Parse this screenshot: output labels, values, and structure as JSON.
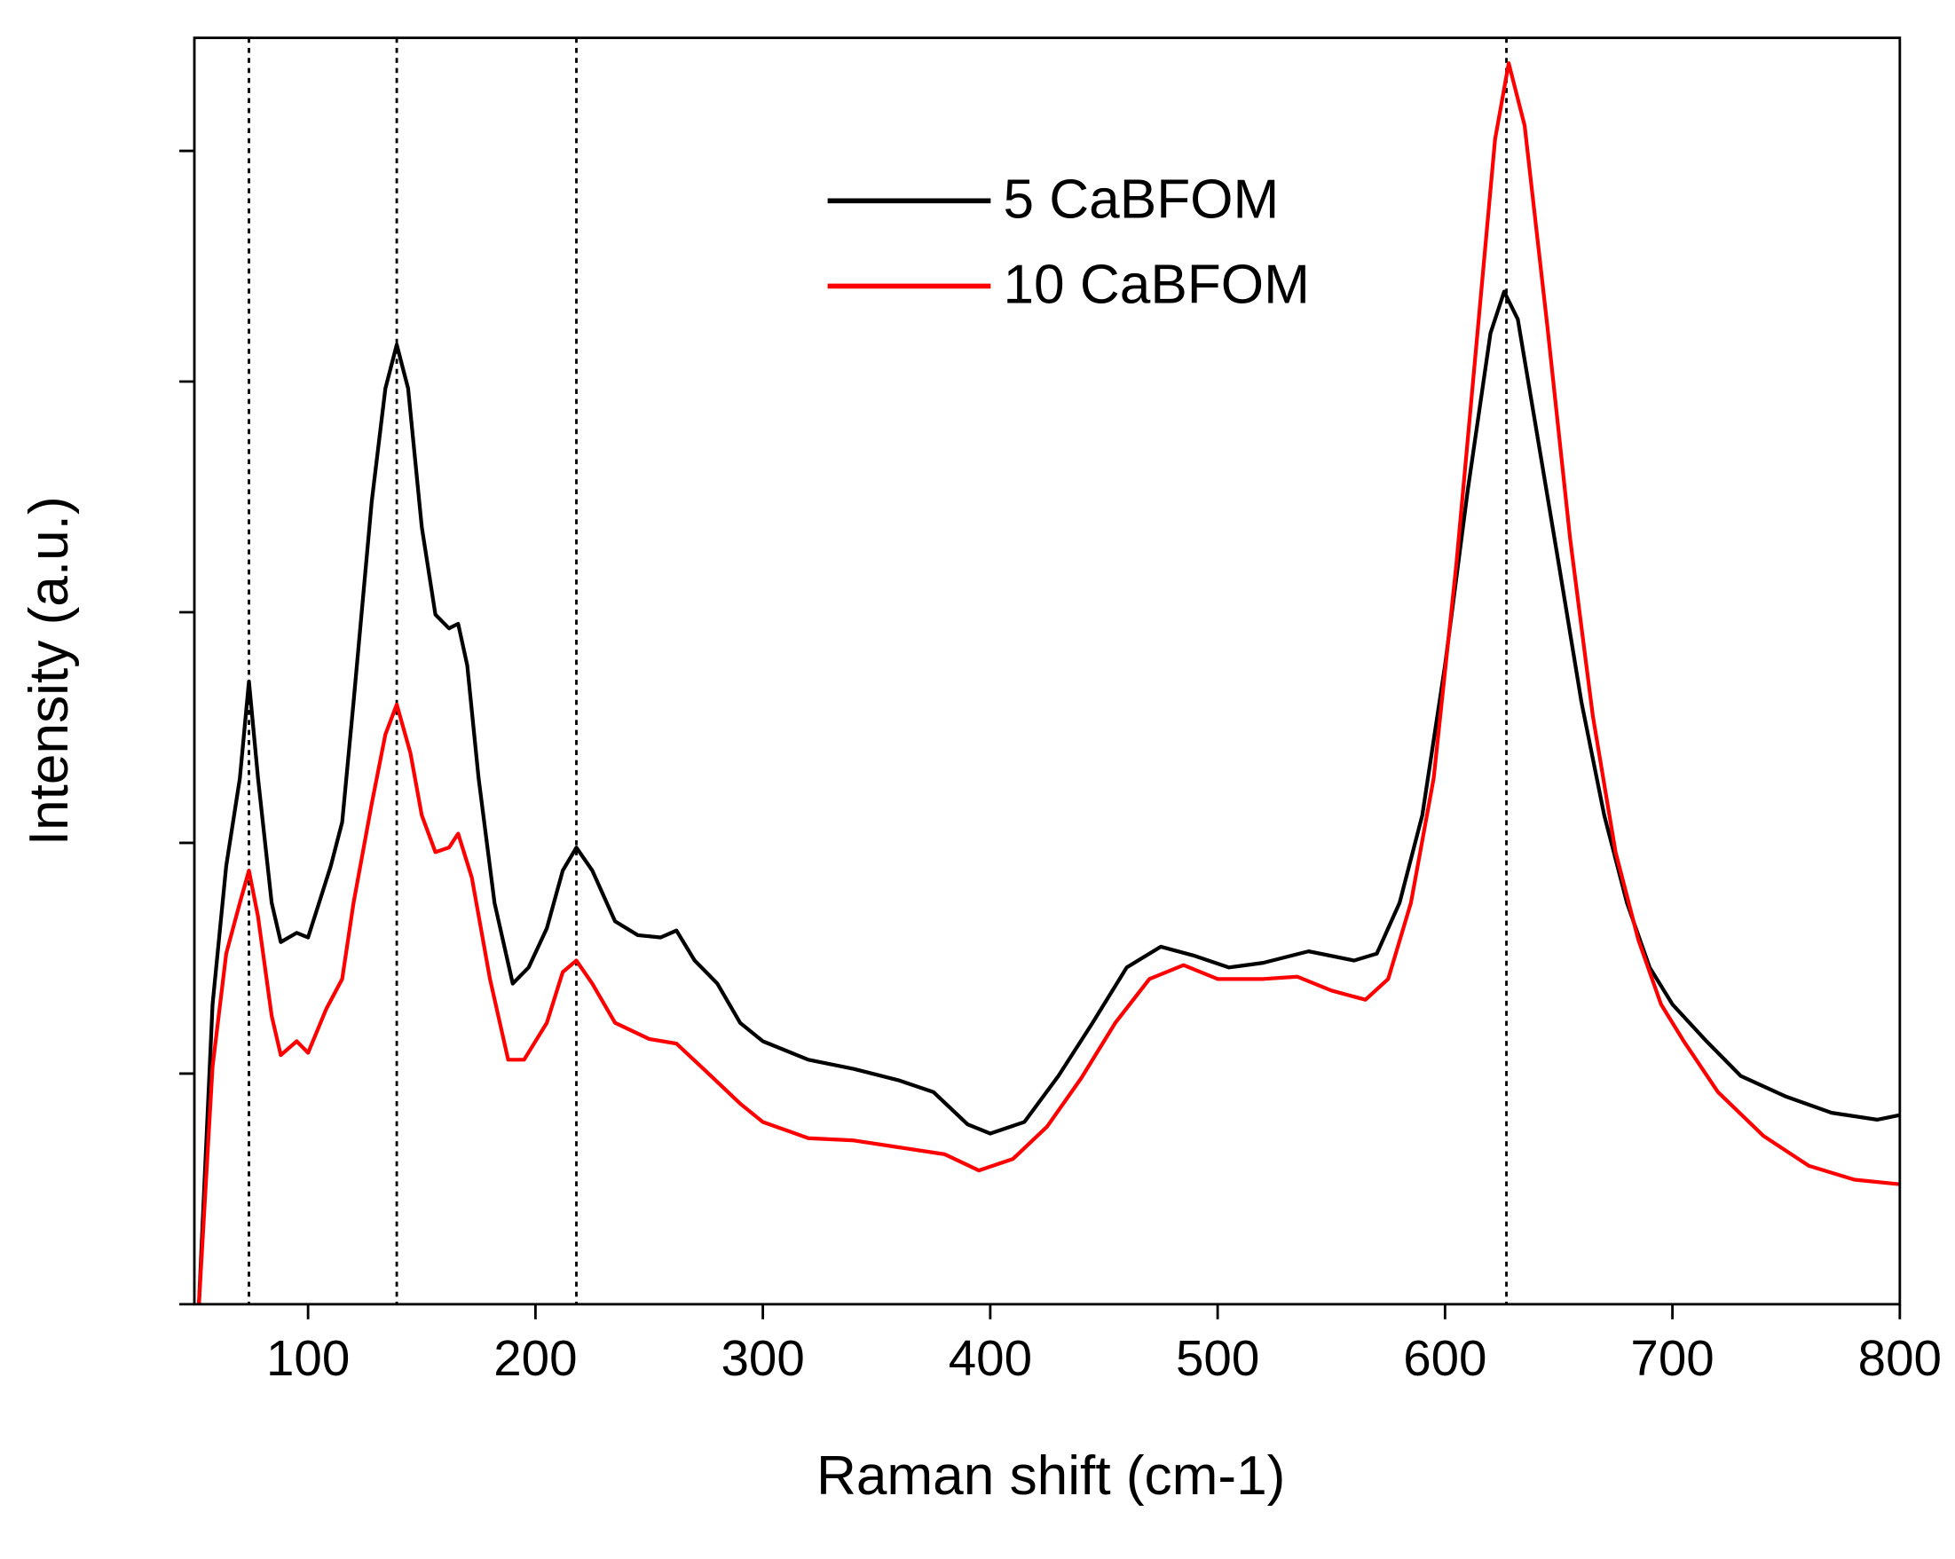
{
  "chart_data": {
    "type": "line",
    "x_label": "Raman shift (cm-1)",
    "y_label": "Intensity (a.u.)",
    "xlim": [
      50,
      800
    ],
    "xticks": [
      100,
      200,
      300,
      400,
      500,
      600,
      700,
      800
    ],
    "ylim": [
      0,
      5.49
    ],
    "yticks": [
      0,
      1,
      2,
      3,
      4,
      5
    ],
    "y_tick_labels": false,
    "grid": false,
    "legend": "upper center",
    "reference_lines": [
      74,
      139,
      218,
      627
    ],
    "series": [
      {
        "name": "5 CaBFOM",
        "color": "#000000",
        "x": [
          52,
          58,
          64,
          70,
          74,
          78,
          84,
          88,
          95,
          100,
          110,
          115,
          120,
          128,
          134,
          139,
          144,
          150,
          156,
          162,
          166,
          170,
          175,
          182,
          190,
          197,
          205,
          212,
          218,
          225,
          235,
          245,
          255,
          262,
          270,
          280,
          290,
          300,
          320,
          340,
          360,
          375,
          390,
          400,
          415,
          430,
          445,
          460,
          475,
          490,
          505,
          520,
          540,
          560,
          570,
          580,
          590,
          600,
          610,
          620,
          626,
          632,
          640,
          650,
          660,
          670,
          680,
          690,
          700,
          715,
          730,
          750,
          770,
          790,
          800
        ],
        "values": [
          0,
          1.3,
          1.9,
          2.28,
          2.7,
          2.28,
          1.74,
          1.57,
          1.61,
          1.59,
          1.9,
          2.09,
          2.61,
          3.48,
          3.97,
          4.16,
          3.97,
          3.37,
          2.99,
          2.93,
          2.95,
          2.77,
          2.28,
          1.74,
          1.39,
          1.46,
          1.63,
          1.88,
          1.98,
          1.88,
          1.66,
          1.6,
          1.59,
          1.62,
          1.49,
          1.39,
          1.22,
          1.14,
          1.06,
          1.02,
          0.97,
          0.92,
          0.78,
          0.74,
          0.79,
          0.99,
          1.22,
          1.46,
          1.55,
          1.51,
          1.46,
          1.48,
          1.53,
          1.49,
          1.52,
          1.74,
          2.12,
          2.77,
          3.53,
          4.21,
          4.39,
          4.27,
          3.8,
          3.21,
          2.61,
          2.12,
          1.74,
          1.46,
          1.3,
          1.14,
          0.99,
          0.9,
          0.83,
          0.8,
          0.82
        ]
      },
      {
        "name": "10 CaBFOM",
        "color": "#ff0000",
        "x": [
          52,
          58,
          64,
          70,
          74,
          78,
          84,
          88,
          95,
          100,
          108,
          115,
          120,
          128,
          134,
          139,
          145,
          150,
          156,
          162,
          166,
          172,
          180,
          188,
          195,
          205,
          212,
          218,
          225,
          235,
          250,
          262,
          275,
          290,
          300,
          320,
          340,
          360,
          380,
          395,
          410,
          425,
          440,
          455,
          470,
          485,
          500,
          520,
          535,
          550,
          565,
          575,
          585,
          595,
          605,
          615,
          622,
          628,
          635,
          645,
          655,
          665,
          675,
          685,
          695,
          705,
          720,
          740,
          760,
          780,
          800
        ],
        "values": [
          0,
          1.03,
          1.52,
          1.74,
          1.88,
          1.68,
          1.25,
          1.08,
          1.14,
          1.09,
          1.28,
          1.41,
          1.74,
          2.17,
          2.47,
          2.6,
          2.39,
          2.12,
          1.96,
          1.98,
          2.04,
          1.85,
          1.41,
          1.06,
          1.06,
          1.22,
          1.44,
          1.49,
          1.39,
          1.22,
          1.15,
          1.13,
          1.01,
          0.87,
          0.79,
          0.72,
          0.71,
          0.68,
          0.65,
          0.58,
          0.63,
          0.77,
          0.98,
          1.22,
          1.41,
          1.47,
          1.41,
          1.41,
          1.42,
          1.36,
          1.32,
          1.41,
          1.74,
          2.28,
          3.21,
          4.29,
          5.05,
          5.38,
          5.11,
          4.24,
          3.32,
          2.55,
          1.96,
          1.58,
          1.3,
          1.14,
          0.92,
          0.73,
          0.6,
          0.54,
          0.52
        ]
      }
    ]
  }
}
